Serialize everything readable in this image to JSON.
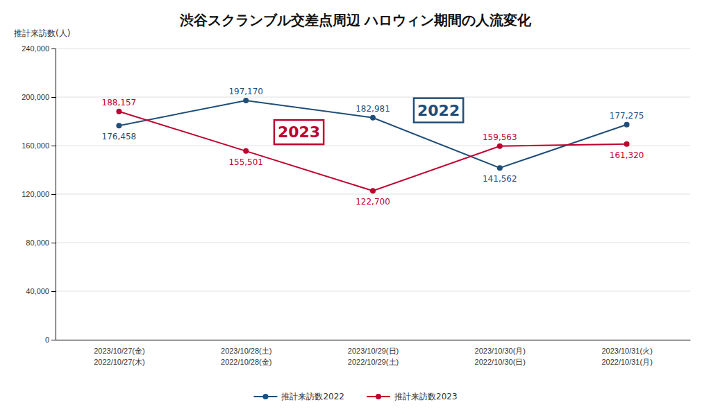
{
  "chart_data": {
    "type": "line",
    "title": "渋谷スクランブル交差点周辺 ハロウィン期間の人流変化",
    "ylabel": "推計来訪数(人)",
    "categories": [
      [
        "2023/10/27(金)",
        "2022/10/27(木)"
      ],
      [
        "2023/10/28(土)",
        "2022/10/28(金)"
      ],
      [
        "2023/10/29(日)",
        "2022/10/29(土)"
      ],
      [
        "2023/10/30(月)",
        "2022/10/30(日)"
      ],
      [
        "2023/10/31(火)",
        "2022/10/31(月)"
      ]
    ],
    "series": [
      {
        "name": "推計来訪数2022",
        "color": "#1F4E79",
        "marker": "circle",
        "values": [
          176458,
          197170,
          182981,
          141562,
          177275
        ],
        "value_labels": [
          "176,458",
          "197,170",
          "182,981",
          "141,562",
          "177,275"
        ]
      },
      {
        "name": "推計来訪数2023",
        "color": "#BE002F",
        "marker": "circle",
        "values": [
          188157,
          155501,
          122700,
          159563,
          161320
        ],
        "value_labels": [
          "188,157",
          "155,501",
          "122,700",
          "159,563",
          "161,320"
        ]
      }
    ],
    "ylim": [
      0,
      240000
    ],
    "yticks": [
      0,
      {
        "value": 40000,
        "label": "40,000"
      },
      {
        "value": 80000,
        "label": "80,000"
      },
      {
        "value": 120000,
        "label": "120,000"
      },
      {
        "value": 160000,
        "label": "160,000"
      },
      {
        "value": 200000,
        "label": "200,000"
      },
      {
        "value": 240000,
        "label": "240,000"
      }
    ],
    "grid": true,
    "legend": "bottom",
    "data_labels": true,
    "annotations": [
      {
        "text": "2022",
        "color": "#1F4E79"
      },
      {
        "text": "2023",
        "color": "#BE002F"
      }
    ]
  }
}
